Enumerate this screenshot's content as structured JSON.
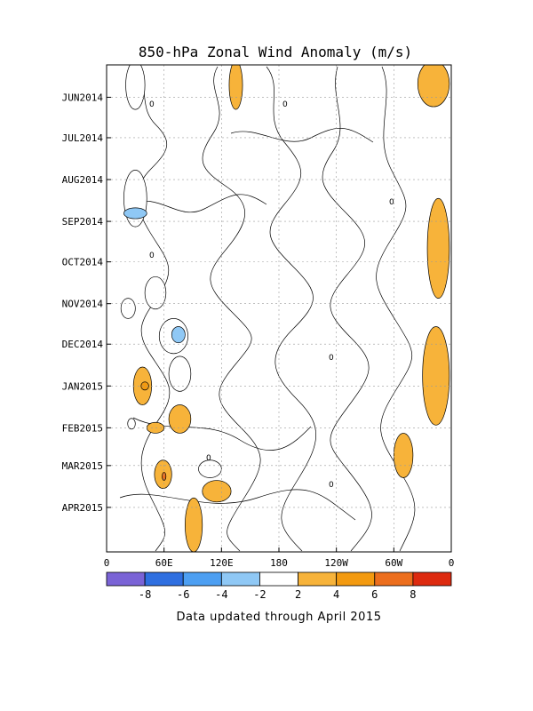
{
  "chart_data": {
    "type": "heatmap",
    "title": "850-hPa Zonal Wind Anomaly (m/s)",
    "footer": "Data updated through April 2015",
    "y_ticks": [
      "JUN2014",
      "JUL2014",
      "AUG2014",
      "SEP2014",
      "OCT2014",
      "NOV2014",
      "DEC2014",
      "JAN2015",
      "FEB2015",
      "MAR2015",
      "APR2015"
    ],
    "x_ticks": [
      "0",
      "60E",
      "120E",
      "180",
      "120W",
      "60W",
      "0"
    ],
    "x_range_deg_east": [
      0,
      360
    ],
    "time_range": [
      "2014-05-08",
      "2015-05-04"
    ],
    "colorbar": {
      "levels": [
        -10,
        -8,
        -6,
        -4,
        -2,
        2,
        4,
        6,
        8,
        10
      ],
      "labels": [
        "-8",
        "-6",
        "-4",
        "-2",
        "2",
        "4",
        "6",
        "8"
      ],
      "colors": [
        "#7a63d6",
        "#2f6fe0",
        "#4d9ff2",
        "#8fc8f5",
        "#ffffff",
        "#f7b33a",
        "#f39a10",
        "#ec6e1d",
        "#dd2a0f"
      ]
    },
    "contour_label": "0",
    "grid": true,
    "regions": [
      {
        "lon": [
          20,
          40
        ],
        "date": [
          "2014-05-05",
          "2014-06-10"
        ],
        "anomaly": -2
      },
      {
        "lon": [
          18,
          42
        ],
        "date": [
          "2014-07-25",
          "2014-09-05"
        ],
        "anomaly": -2
      },
      {
        "lon": [
          18,
          42
        ],
        "date": [
          "2014-08-22",
          "2014-08-30"
        ],
        "anomaly": -4
      },
      {
        "lon": [
          15,
          30
        ],
        "date": [
          "2014-10-28",
          "2014-11-12"
        ],
        "anomaly": -2
      },
      {
        "lon": [
          40,
          62
        ],
        "date": [
          "2014-10-12",
          "2014-11-05"
        ],
        "anomaly": -2
      },
      {
        "lon": [
          55,
          85
        ],
        "date": [
          "2014-11-12",
          "2014-12-08"
        ],
        "anomaly": -2
      },
      {
        "lon": [
          68,
          82
        ],
        "date": [
          "2014-11-18",
          "2014-11-30"
        ],
        "anomaly": -4
      },
      {
        "lon": [
          65,
          88
        ],
        "date": [
          "2014-12-10",
          "2015-01-05"
        ],
        "anomaly": -2
      },
      {
        "lon": [
          28,
          47
        ],
        "date": [
          "2014-12-18",
          "2015-01-15"
        ],
        "anomaly": 2
      },
      {
        "lon": [
          36,
          44
        ],
        "date": [
          "2014-12-29",
          "2015-01-04"
        ],
        "anomaly": 4
      },
      {
        "lon": [
          22,
          30
        ],
        "date": [
          "2015-01-25",
          "2015-02-02"
        ],
        "anomaly": -2
      },
      {
        "lon": [
          42,
          60
        ],
        "date": [
          "2015-01-28",
          "2015-02-05"
        ],
        "anomaly": 2
      },
      {
        "lon": [
          65,
          88
        ],
        "date": [
          "2015-01-15",
          "2015-02-05"
        ],
        "anomaly": 2
      },
      {
        "lon": [
          50,
          68
        ],
        "date": [
          "2015-02-25",
          "2015-03-18"
        ],
        "anomaly": 2
      },
      {
        "lon": [
          58,
          62
        ],
        "date": [
          "2015-03-06",
          "2015-03-12"
        ],
        "anomaly": 6
      },
      {
        "lon": [
          96,
          120
        ],
        "date": [
          "2015-02-25",
          "2015-03-10"
        ],
        "anomaly": -2
      },
      {
        "lon": [
          100,
          130
        ],
        "date": [
          "2015-03-12",
          "2015-03-28"
        ],
        "anomaly": 2
      },
      {
        "lon": [
          128,
          142
        ],
        "date": [
          "2014-05-05",
          "2014-06-10"
        ],
        "anomaly": 2
      },
      {
        "lon": [
          325,
          358
        ],
        "date": [
          "2014-05-05",
          "2014-06-08"
        ],
        "anomaly": 2
      },
      {
        "lon": [
          335,
          358
        ],
        "date": [
          "2014-08-15",
          "2014-10-28"
        ],
        "anomaly": 2
      },
      {
        "lon": [
          330,
          358
        ],
        "date": [
          "2014-11-18",
          "2015-01-30"
        ],
        "anomaly": 2
      },
      {
        "lon": [
          300,
          320
        ],
        "date": [
          "2015-02-05",
          "2015-03-10"
        ],
        "anomaly": 2
      },
      {
        "lon": [
          82,
          100
        ],
        "date": [
          "2015-03-25",
          "2015-05-04"
        ],
        "anomaly": 2
      }
    ]
  }
}
